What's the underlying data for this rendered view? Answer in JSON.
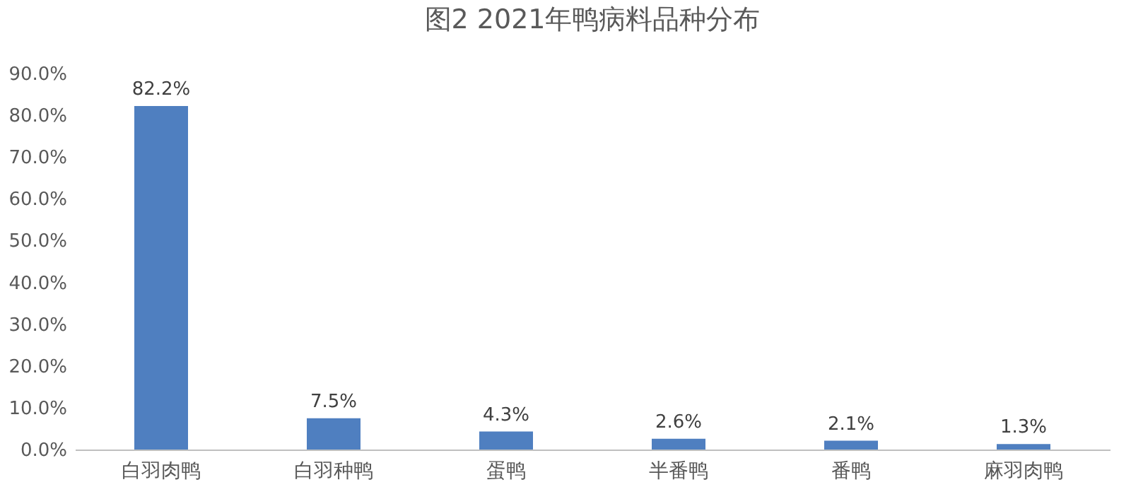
{
  "chart_data": {
    "type": "bar",
    "title": "图2 2021年鸭病料品种分布",
    "categories": [
      "白羽肉鸭",
      "白羽种鸭",
      "蛋鸭",
      "半番鸭",
      "番鸭",
      "麻羽肉鸭"
    ],
    "values": [
      82.2,
      7.5,
      4.3,
      2.6,
      2.1,
      1.3
    ],
    "value_labels": [
      "82.2%",
      "7.5%",
      "4.3%",
      "2.6%",
      "2.1%",
      "1.3%"
    ],
    "color": "#4f7fc0",
    "ylim": [
      0,
      90
    ],
    "yticks": [
      {
        "value": 0,
        "label": "0.0%"
      },
      {
        "value": 10,
        "label": "10.0%"
      },
      {
        "value": 20,
        "label": "20.0%"
      },
      {
        "value": 30,
        "label": "30.0%"
      },
      {
        "value": 40,
        "label": "40.0%"
      },
      {
        "value": 50,
        "label": "50.0%"
      },
      {
        "value": 60,
        "label": "60.0%"
      },
      {
        "value": 70,
        "label": "70.0%"
      },
      {
        "value": 80,
        "label": "80.0%"
      },
      {
        "value": 90,
        "label": "90.0%"
      }
    ],
    "grid": false
  }
}
